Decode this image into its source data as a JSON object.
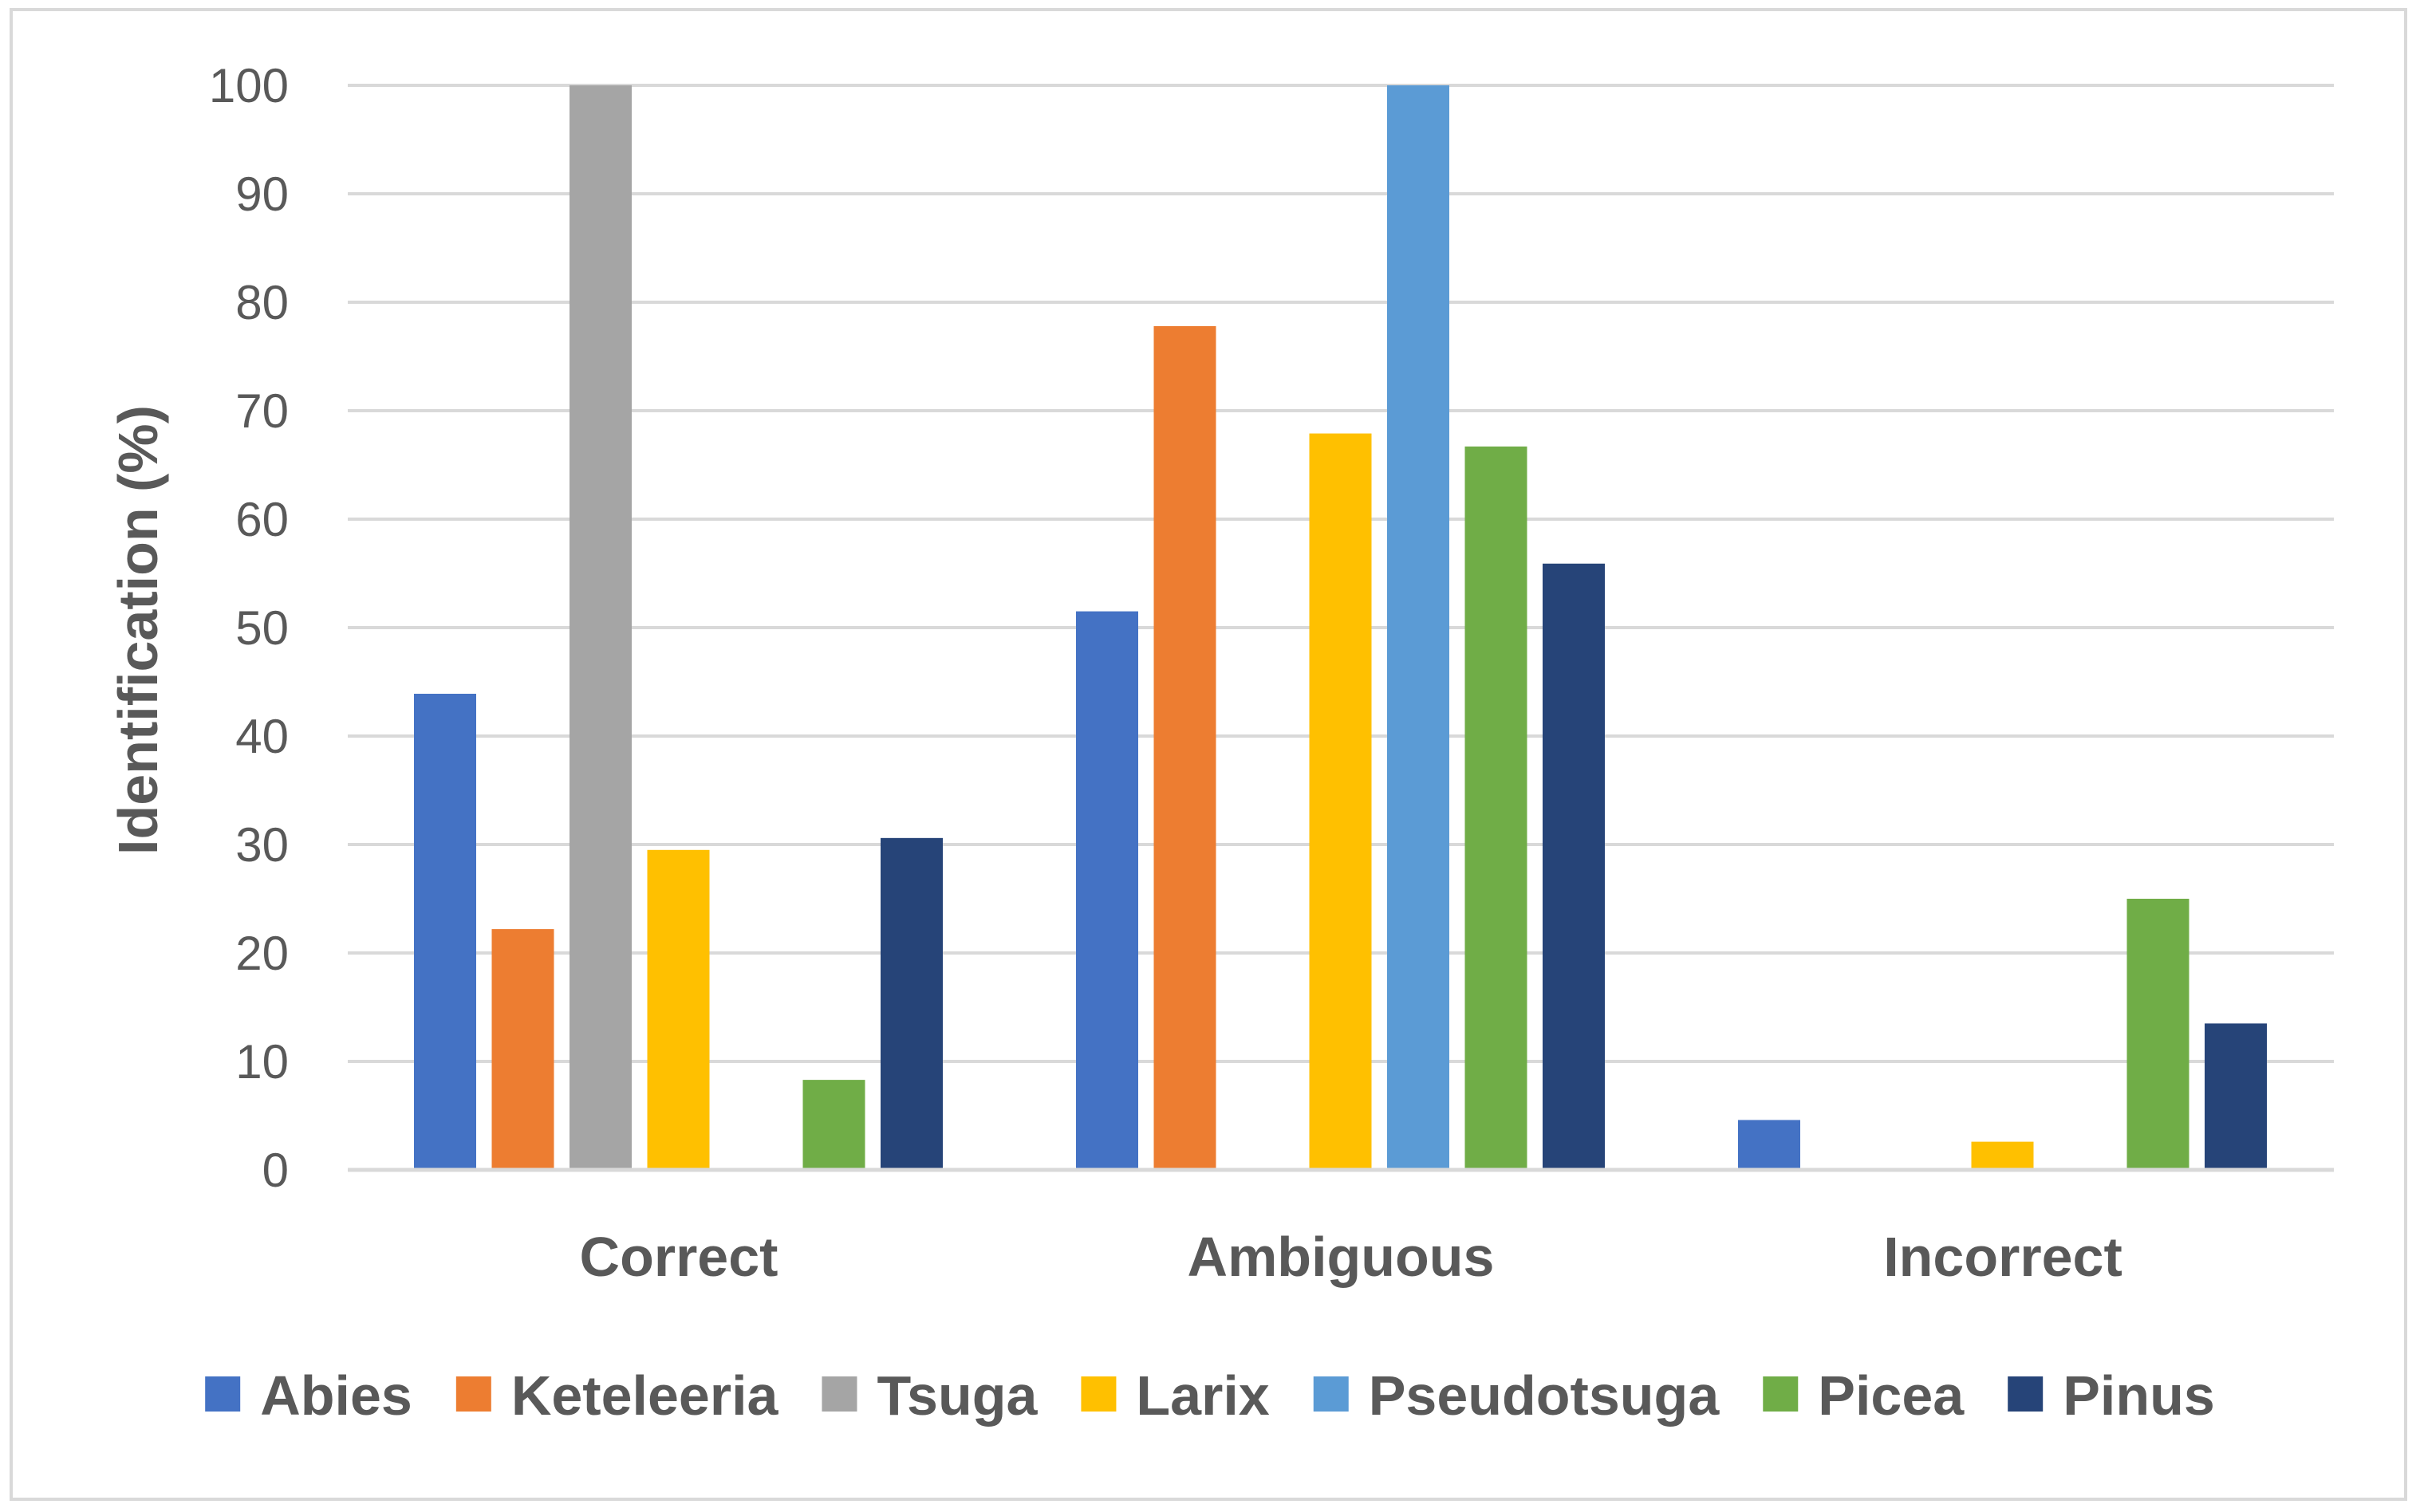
{
  "chart_data": {
    "type": "bar",
    "categories": [
      "Correct",
      "Ambiguous",
      "Incorrect"
    ],
    "series": [
      {
        "name": "Abies",
        "color": "#4472c4",
        "values": [
          43.9,
          51.5,
          4.6
        ]
      },
      {
        "name": "Keteleeria",
        "color": "#ed7d31",
        "values": [
          22.2,
          77.8,
          0
        ]
      },
      {
        "name": "Tsuga",
        "color": "#a5a5a5",
        "values": [
          100,
          0,
          0
        ]
      },
      {
        "name": "Larix",
        "color": "#ffc000",
        "values": [
          29.5,
          67.9,
          2.6
        ]
      },
      {
        "name": "Pseudotsuga",
        "color": "#5b9bd5",
        "values": [
          0,
          100,
          0
        ]
      },
      {
        "name": "Picea",
        "color": "#70ad47",
        "values": [
          8.3,
          66.7,
          25
        ]
      },
      {
        "name": "Pinus",
        "color": "#264478",
        "values": [
          30.6,
          55.9,
          13.5
        ]
      }
    ],
    "xlabel": "",
    "ylabel": "Identification (%)",
    "ylim": [
      0,
      100
    ],
    "yticks": [
      0,
      10,
      20,
      30,
      40,
      50,
      60,
      70,
      80,
      90,
      100
    ],
    "grid": true,
    "legend": "bottom"
  }
}
